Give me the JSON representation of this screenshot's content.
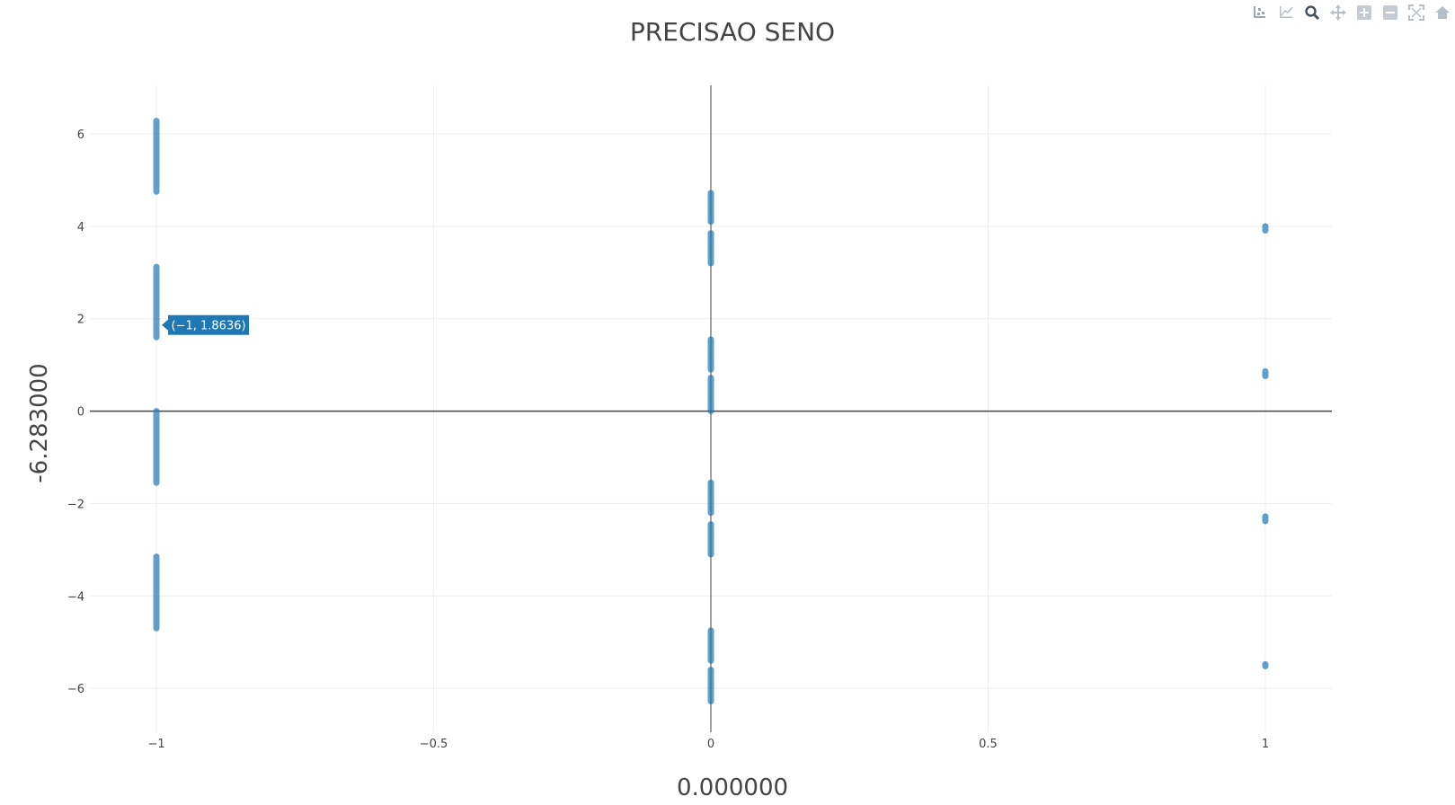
{
  "chart_data": {
    "type": "scatter",
    "title": "PRECISAO SENO",
    "xlabel": "0.000000",
    "ylabel": "-6.283000",
    "xlim": [
      -1.12,
      1.12
    ],
    "ylim": [
      -6.95,
      7.05
    ],
    "xticks": [
      -1,
      -0.5,
      0,
      0.5,
      1
    ],
    "xtick_labels": [
      "−1",
      "−0.5",
      "0",
      "0.5",
      "1"
    ],
    "yticks": [
      -6,
      -4,
      -2,
      0,
      2,
      4,
      6
    ],
    "ytick_labels": [
      "−6",
      "−4",
      "−2",
      "0",
      "2",
      "4",
      "6"
    ],
    "grid": true,
    "marker_color": "#1f77b4",
    "series": [
      {
        "segments": [
          {
            "x": -1,
            "y_from": 4.75,
            "y_to": 6.28
          },
          {
            "x": -1,
            "y_from": 1.6,
            "y_to": 3.12
          },
          {
            "x": -1,
            "y_from": -1.55,
            "y_to": 0.0
          },
          {
            "x": -1,
            "y_from": -4.7,
            "y_to": -3.15
          },
          {
            "x": 0,
            "y_from": 4.1,
            "y_to": 4.72
          },
          {
            "x": 0,
            "y_from": 3.2,
            "y_to": 3.85
          },
          {
            "x": 0,
            "y_from": 0.9,
            "y_to": 1.55
          },
          {
            "x": 0,
            "y_from": 0.0,
            "y_to": 0.72
          },
          {
            "x": 0,
            "y_from": -2.2,
            "y_to": -1.55
          },
          {
            "x": 0,
            "y_from": -3.1,
            "y_to": -2.45
          },
          {
            "x": 0,
            "y_from": -5.4,
            "y_to": -4.75
          },
          {
            "x": 0,
            "y_from": -6.28,
            "y_to": -5.6
          },
          {
            "x": 1,
            "y_from": 3.91,
            "y_to": 4.0
          },
          {
            "x": 1,
            "y_from": 0.76,
            "y_to": 0.86
          },
          {
            "x": 1,
            "y_from": -2.38,
            "y_to": -2.28
          },
          {
            "x": 1,
            "y_from": -5.52,
            "y_to": -5.48
          }
        ]
      }
    ],
    "tooltip": {
      "x": -1,
      "y": 1.8636,
      "text": "(−1, 1.8636)"
    }
  },
  "modebar": {
    "buttons": [
      {
        "name": "compare-data-icon"
      },
      {
        "name": "show-closest-icon"
      },
      {
        "name": "zoom-icon"
      },
      {
        "name": "pan-icon"
      },
      {
        "name": "zoom-in-icon"
      },
      {
        "name": "zoom-out-icon"
      },
      {
        "name": "autoscale-icon"
      },
      {
        "name": "reset-axes-icon"
      }
    ]
  }
}
